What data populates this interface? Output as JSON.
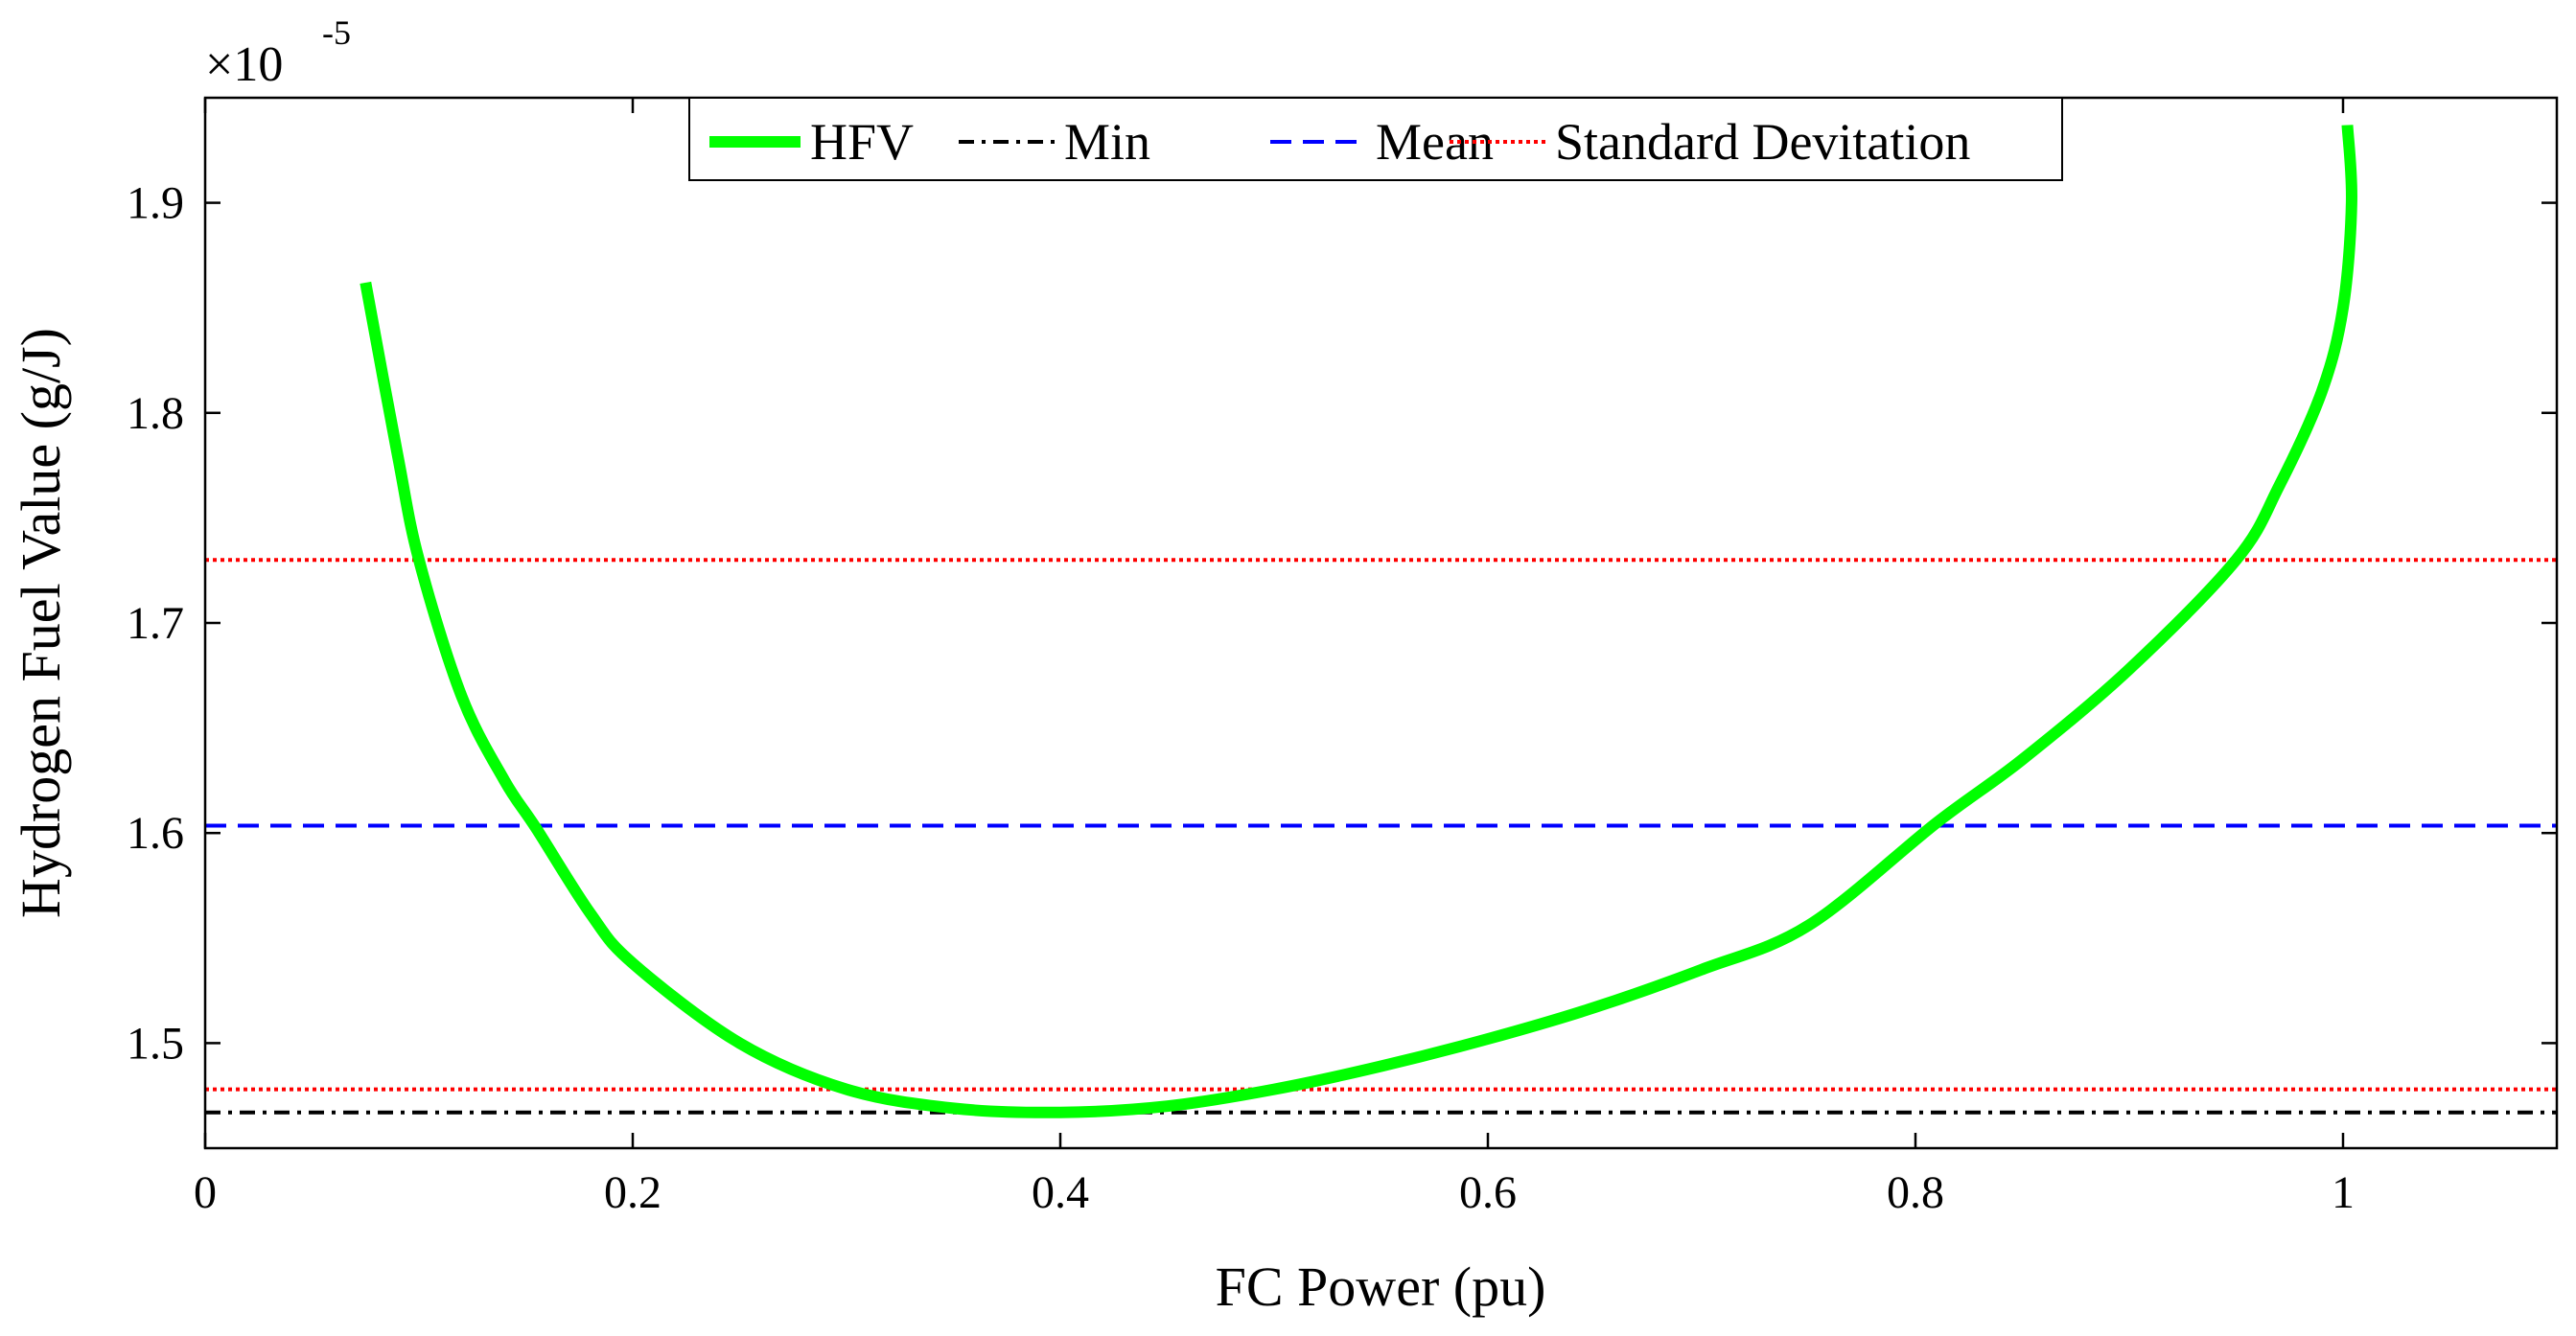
{
  "chart_data": {
    "type": "line",
    "title": "",
    "xlabel": "FC Power (pu)",
    "ylabel": "Hydrogen Fuel Value (g/J)",
    "y_multiplier": {
      "base": "×10",
      "exponent": "-5"
    },
    "xlim": [
      0,
      1.1
    ],
    "ylim": [
      1.45,
      1.95
    ],
    "xticks": [
      {
        "value": 0,
        "label": "0"
      },
      {
        "value": 0.2,
        "label": "0.2"
      },
      {
        "value": 0.4,
        "label": "0.4"
      },
      {
        "value": 0.6,
        "label": "0.6"
      },
      {
        "value": 0.8,
        "label": "0.8"
      },
      {
        "value": 1.0,
        "label": "1"
      }
    ],
    "yticks": [
      {
        "value": 1.5,
        "label": "1.5"
      },
      {
        "value": 1.6,
        "label": "1.6"
      },
      {
        "value": 1.7,
        "label": "1.7"
      },
      {
        "value": 1.8,
        "label": "1.8"
      },
      {
        "value": 1.9,
        "label": "1.9"
      }
    ],
    "grid": false,
    "legend_position": "top",
    "series": [
      {
        "name": "HFV",
        "style": "solid",
        "color": "#00ff00",
        "x": [
          0.075,
          0.09,
          0.1,
          0.12,
          0.14,
          0.155,
          0.18,
          0.2,
          0.25,
          0.3,
          0.35,
          0.4,
          0.45,
          0.5,
          0.55,
          0.6,
          0.65,
          0.7,
          0.75,
          0.81,
          0.85,
          0.9,
          0.95,
          0.97,
          0.99,
          1.0,
          1.004,
          1.002
        ],
        "y": [
          1.862,
          1.78,
          1.73,
          1.665,
          1.625,
          1.602,
          1.562,
          1.538,
          1.5,
          1.478,
          1.469,
          1.467,
          1.47,
          1.478,
          1.489,
          1.502,
          1.517,
          1.535,
          1.556,
          1.605,
          1.635,
          1.678,
          1.73,
          1.765,
          1.81,
          1.85,
          1.9,
          1.937
        ]
      },
      {
        "name": "Min",
        "style": "dashdot",
        "color": "#000000",
        "y": 1.467
      },
      {
        "name": "Mean",
        "style": "dashed",
        "color": "#0000ff",
        "y": 1.6035
      },
      {
        "name": "Standard Devitation",
        "style": "dotted",
        "color": "#ff0000",
        "y_values": [
          1.73,
          1.478
        ]
      }
    ]
  }
}
